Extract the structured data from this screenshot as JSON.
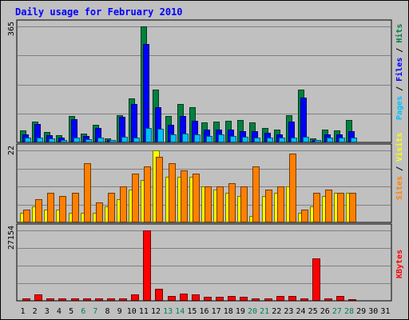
{
  "chart_data": {
    "type": "bar",
    "title": "Daily usage for February 2010",
    "days": [
      "1",
      "2",
      "3",
      "4",
      "5",
      "6",
      "7",
      "8",
      "9",
      "10",
      "11",
      "12",
      "13",
      "14",
      "15",
      "16",
      "17",
      "18",
      "19",
      "20",
      "21",
      "22",
      "23",
      "24",
      "25",
      "26",
      "27",
      "28",
      "29",
      "30",
      "31"
    ],
    "weekend_days": [
      "6",
      "7",
      "13",
      "14",
      "20",
      "21",
      "27",
      "28"
    ],
    "panels": [
      {
        "max_label": "365",
        "max": 365,
        "series_legend": [
          {
            "name": "Pages",
            "color": "#00c0ff"
          },
          {
            "name": "Files",
            "color": "#0000ff"
          },
          {
            "name": "Hits",
            "color": "#008040"
          }
        ],
        "legend_separator": " / ",
        "series": [
          {
            "name": "Hits",
            "color": "#008040",
            "values": [
              37,
              65,
              32,
              22,
              83,
              27,
              55,
              12,
              85,
              138,
              365,
              165,
              82,
              122,
              110,
              62,
              65,
              67,
              70,
              62,
              45,
              40,
              85,
              165,
              12,
              40,
              37,
              70,
              null,
              null,
              null
            ]
          },
          {
            "name": "Files",
            "color": "#0000ff",
            "values": [
              25,
              58,
              22,
              15,
              73,
              20,
              45,
              8,
              80,
              120,
              310,
              110,
              55,
              82,
              68,
              40,
              40,
              40,
              35,
              35,
              30,
              25,
              65,
              140,
              8,
              25,
              25,
              35,
              null,
              null,
              null
            ]
          },
          {
            "name": "Pages",
            "color": "#00c0ff",
            "values": [
              15,
              15,
              12,
              8,
              15,
              10,
              15,
              8,
              18,
              15,
              45,
              42,
              25,
              28,
              25,
              20,
              25,
              20,
              18,
              15,
              15,
              15,
              15,
              18,
              8,
              15,
              15,
              15,
              null,
              null,
              null
            ]
          }
        ]
      },
      {
        "max_label": "22",
        "max": 22,
        "series_legend": [
          {
            "name": "Sites",
            "color": "#ff8000"
          },
          {
            "name": "Visits",
            "color": "#ffff00"
          }
        ],
        "legend_separator": " / ",
        "series": [
          {
            "name": "Visits",
            "color": "#ffff00",
            "values": [
              3,
              5,
              4,
              4,
              3,
              3,
              3,
              5,
              7,
              10,
              13,
              22,
              14,
              14,
              14,
              11,
              10,
              9,
              8,
              2,
              8,
              9,
              11,
              3,
              5,
              8,
              9,
              9,
              null,
              null,
              null
            ]
          },
          {
            "name": "Sites",
            "color": "#ff8000",
            "values": [
              4,
              7,
              9,
              8,
              9,
              18,
              6,
              9,
              11,
              15,
              17,
              20,
              18,
              16,
              15,
              11,
              11,
              12,
              11,
              17,
              10,
              11,
              21,
              4,
              9,
              10,
              9,
              9,
              null,
              null,
              null
            ]
          }
        ]
      },
      {
        "max_label": "27154",
        "max": 27154,
        "series_legend": [
          {
            "name": "KBytes",
            "color": "#ff0000"
          }
        ],
        "legend_separator": "",
        "series": [
          {
            "name": "KBytes",
            "color": "#ff0000",
            "values": [
              800,
              2500,
              300,
              300,
              900,
              300,
              1000,
              300,
              1000,
              2500,
              27154,
              4500,
              2000,
              2700,
              2400,
              1500,
              1500,
              1800,
              1500,
              700,
              700,
              1800,
              1700,
              700,
              16500,
              600,
              1800,
              0,
              null,
              null,
              null
            ]
          }
        ]
      }
    ]
  }
}
